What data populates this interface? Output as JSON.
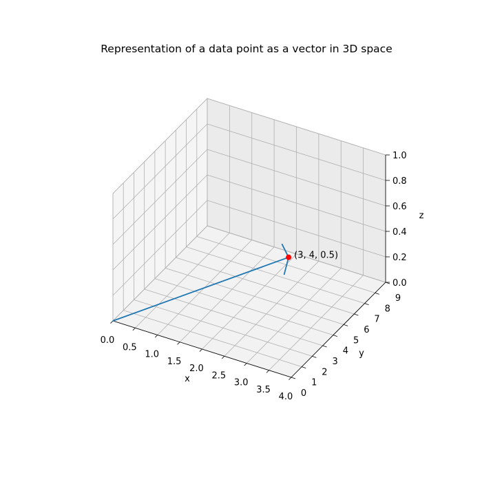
{
  "chart_data": {
    "type": "line3d",
    "title": "Representation of a data point as a vector in 3D space",
    "xlabel": "x",
    "ylabel": "y",
    "zlabel": "z",
    "xlim": [
      0,
      4
    ],
    "ylim": [
      0,
      9
    ],
    "zlim": [
      0,
      1
    ],
    "xticks": [
      "0.0",
      "0.5",
      "1.0",
      "1.5",
      "2.0",
      "2.5",
      "3.0",
      "3.5",
      "4.0"
    ],
    "yticks": [
      "0",
      "1",
      "2",
      "3",
      "4",
      "5",
      "6",
      "7",
      "8",
      "9"
    ],
    "zticks": [
      "0.0",
      "0.2",
      "0.4",
      "0.6",
      "0.8",
      "1.0"
    ],
    "grid": true,
    "vector": {
      "from": [
        0,
        0,
        0
      ],
      "to": [
        3,
        4,
        0.5
      ],
      "color": "#1f77b4"
    },
    "point": {
      "x": 3,
      "y": 4,
      "z": 0.5,
      "color": "#ff0000",
      "label": "(3, 4, 0.5)"
    }
  }
}
